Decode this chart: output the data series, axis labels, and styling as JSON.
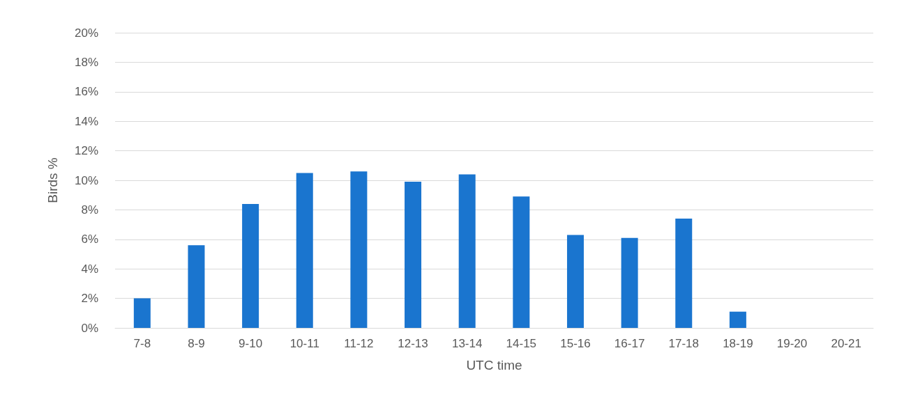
{
  "chart_data": {
    "type": "bar",
    "xlabel": "UTC time",
    "ylabel": "Birds %",
    "categories": [
      "7-8",
      "8-9",
      "9-10",
      "10-11",
      "11-12",
      "12-13",
      "13-14",
      "14-15",
      "15-16",
      "16-17",
      "17-18",
      "18-19",
      "19-20",
      "20-21"
    ],
    "values": [
      2.0,
      5.6,
      8.4,
      10.5,
      10.6,
      9.9,
      10.4,
      8.9,
      6.3,
      6.1,
      7.4,
      1.1,
      0,
      0
    ],
    "color": "#1a75cf",
    "ylim": [
      0,
      20
    ],
    "yticks": [
      {
        "value": 0,
        "label": "0%"
      },
      {
        "value": 2,
        "label": "2%"
      },
      {
        "value": 4,
        "label": "4%"
      },
      {
        "value": 6,
        "label": "6%"
      },
      {
        "value": 8,
        "label": "8%"
      },
      {
        "value": 10,
        "label": "10%"
      },
      {
        "value": 12,
        "label": "12%"
      },
      {
        "value": 14,
        "label": "14%"
      },
      {
        "value": 16,
        "label": "16%"
      },
      {
        "value": 18,
        "label": "18%"
      },
      {
        "value": 20,
        "label": "20%"
      }
    ],
    "grid": "y"
  }
}
